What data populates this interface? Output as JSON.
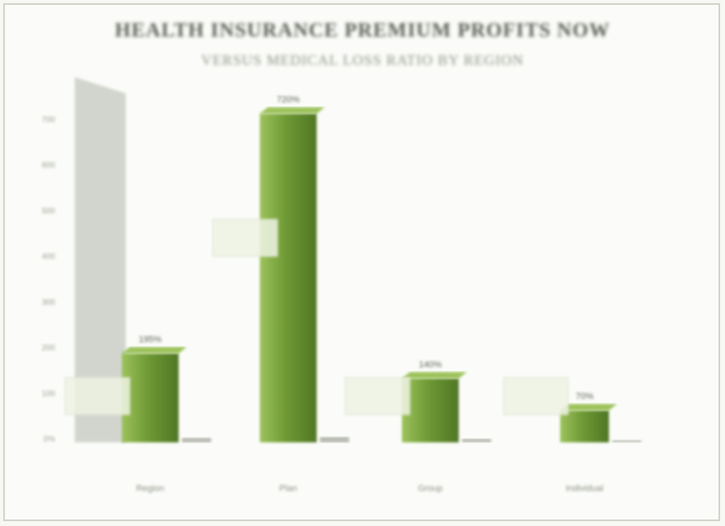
{
  "chart_data": {
    "type": "bar",
    "title": "HEALTH INSURANCE PREMIUM PROFITS NOW",
    "subtitle": "VERSUS MEDICAL LOSS RATIO BY REGION",
    "categories": [
      "Region",
      "Plan",
      "Group",
      "Individual"
    ],
    "series": [
      {
        "name": "",
        "values": [
          195,
          720,
          140,
          70
        ]
      },
      {
        "name": "",
        "values": [
          10,
          12,
          8,
          5
        ]
      }
    ],
    "ylim": [
      0,
      800
    ],
    "yticks": [
      "0%",
      "100",
      "200",
      "300",
      "400",
      "500",
      "600",
      "700"
    ],
    "data_labels": [
      "195%",
      "720%",
      "140%",
      "70%"
    ],
    "callouts": [
      "",
      "",
      "",
      ""
    ],
    "sub_labels": [
      "",
      "",
      "",
      ""
    ],
    "legend": [
      "",
      ""
    ],
    "colors": {
      "bar": "#6f9a35",
      "bar_dark": "#4f7624",
      "bar_light": "#9cc25c",
      "wall": "#c9ccc4",
      "grid": "#e3e6dc"
    },
    "grid": true,
    "legend_position": "top-right"
  },
  "footer": {
    "left": "",
    "right": ""
  }
}
